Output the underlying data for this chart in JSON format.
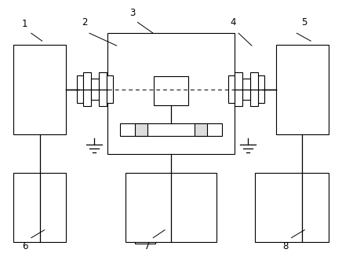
{
  "bg_color": "#ffffff",
  "line_color": "#000000",
  "figsize": [
    4.36,
    3.22
  ],
  "dpi": 100,
  "lw": 0.8
}
